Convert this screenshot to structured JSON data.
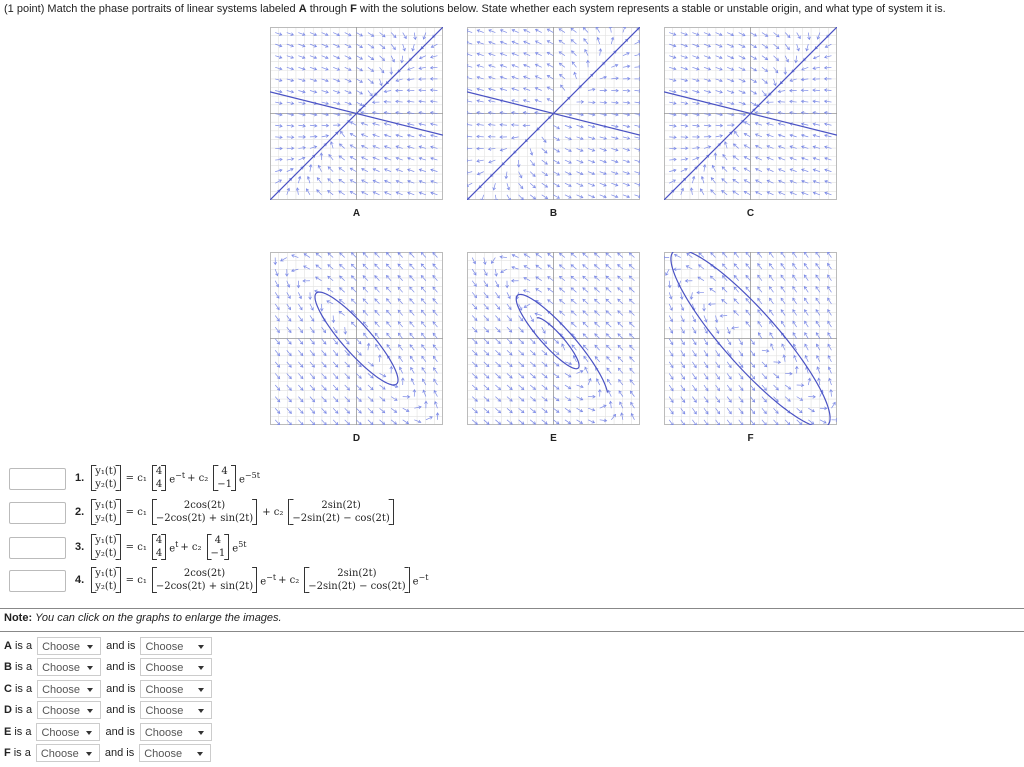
{
  "intro": {
    "pre": "(1 point) Match the phase portraits of linear systems labeled ",
    "a": "A",
    "mid": " through ",
    "f": "F",
    "post": " with the solutions below. State whether each system represents a stable or unstable origin, and what type of system it is."
  },
  "graphs": [
    "A",
    "B",
    "C",
    "D",
    "E",
    "F"
  ],
  "equations": [
    {
      "number": "1.",
      "lhs": [
        "y₁(t)",
        "y₂(t)"
      ],
      "terms": [
        {
          "coef": "= c₁",
          "vector": [
            "4",
            "4"
          ],
          "exp": {
            "base": "e",
            "power": "−t"
          }
        },
        {
          "coef": "+ c₂",
          "vector": [
            "4",
            "−1"
          ],
          "exp": {
            "base": "e",
            "power": "−5t"
          }
        }
      ]
    },
    {
      "number": "2.",
      "lhs": [
        "y₁(t)",
        "y₂(t)"
      ],
      "terms": [
        {
          "coef": "= c₁",
          "vector": [
            "2cos(2t)",
            "−2cos(2t) + sin(2t)"
          ]
        },
        {
          "coef": "+ c₂",
          "vector": [
            "2sin(2t)",
            "−2sin(2t) − cos(2t)"
          ]
        }
      ]
    },
    {
      "number": "3.",
      "lhs": [
        "y₁(t)",
        "y₂(t)"
      ],
      "terms": [
        {
          "coef": "= c₁",
          "vector": [
            "4",
            "4"
          ],
          "exp": {
            "base": "e",
            "power": "t"
          }
        },
        {
          "coef": "+ c₂",
          "vector": [
            "4",
            "−1"
          ],
          "exp": {
            "base": "e",
            "power": "5t"
          }
        }
      ]
    },
    {
      "number": "4.",
      "lhs": [
        "y₁(t)",
        "y₂(t)"
      ],
      "terms": [
        {
          "coef": "= c₁",
          "vector": [
            "2cos(2t)",
            "−2cos(2t) + sin(2t)"
          ],
          "exp": {
            "base": "e",
            "power": "−t"
          }
        },
        {
          "coef": "+ c₂",
          "vector": [
            "2sin(2t)",
            "−2sin(2t) − cos(2t)"
          ],
          "exp": {
            "base": "e",
            "power": "−t"
          }
        }
      ]
    }
  ],
  "note": {
    "label": "Note:",
    "text": "You can click on the graphs to enlarge the images."
  },
  "answers": [
    {
      "letter": "A",
      "is_a": "is a",
      "select1": "Choose",
      "and_is": "and is",
      "select2": "Choose"
    },
    {
      "letter": "B",
      "is_a": "is a",
      "select1": "Choose",
      "and_is": "and is",
      "select2": "Choose"
    },
    {
      "letter": "C",
      "is_a": "is a",
      "select1": "Choose",
      "and_is": "and is",
      "select2": "Choose"
    },
    {
      "letter": "D",
      "is_a": "is a",
      "select1": "Choose",
      "and_is": "and is",
      "select2": "Choose"
    },
    {
      "letter": "E",
      "is_a": "is a",
      "select1": "Choose",
      "and_is": "and is",
      "select2": "Choose"
    },
    {
      "letter": "F",
      "is_a": "is a",
      "select1": "Choose",
      "and_is": "and is",
      "select2": "Choose"
    }
  ]
}
